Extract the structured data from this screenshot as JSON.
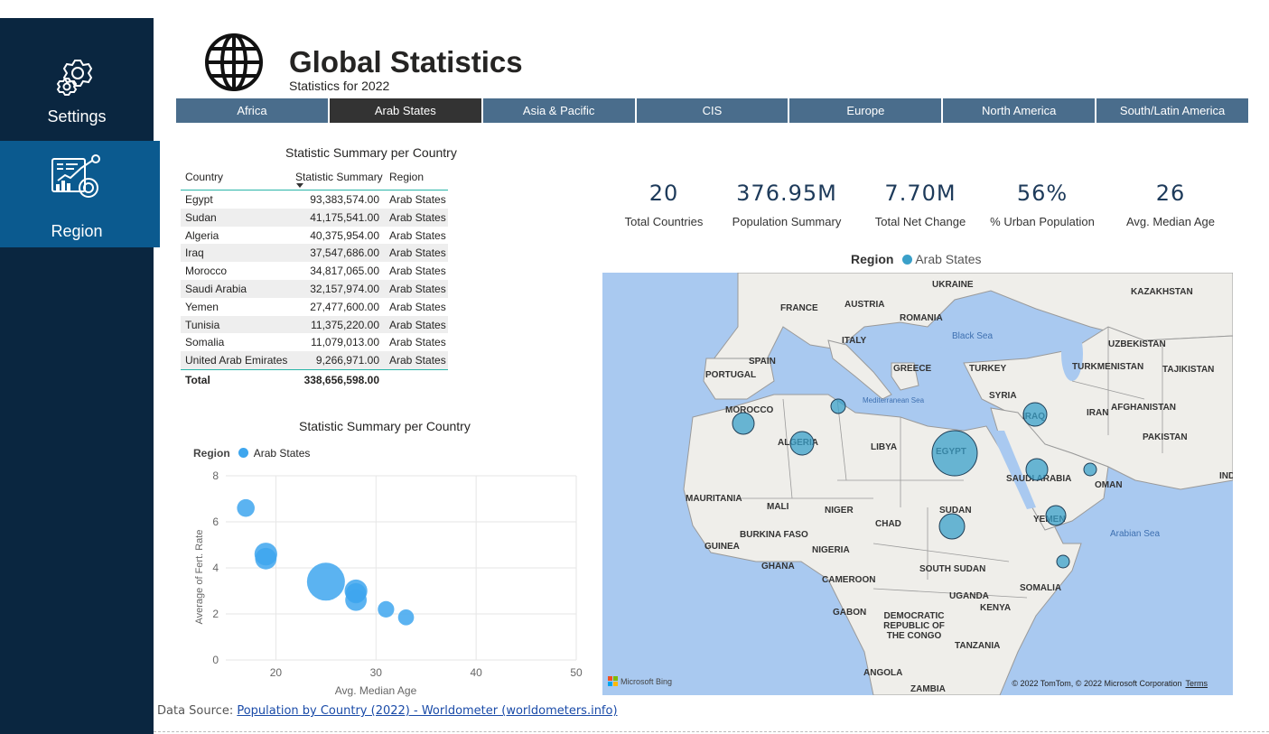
{
  "sidebar": {
    "items": [
      {
        "label": "Settings",
        "icon": "gear-icon"
      },
      {
        "label": "Region",
        "icon": "analytics-icon"
      }
    ]
  },
  "header": {
    "title": "Global Statistics",
    "subtitle": "Statistics for 2022",
    "icon": "globe-icon"
  },
  "tabs": [
    "Africa",
    "Arab States",
    "Asia & Pacific",
    "CIS",
    "Europe",
    "North America",
    "South/Latin America"
  ],
  "active_tab": "Arab States",
  "table": {
    "title": "Statistic Summary per Country",
    "columns": [
      "Country",
      "Statistic Summary",
      "Region"
    ],
    "rows": [
      [
        "Egypt",
        "93,383,574.00",
        "Arab States"
      ],
      [
        "Sudan",
        "41,175,541.00",
        "Arab States"
      ],
      [
        "Algeria",
        "40,375,954.00",
        "Arab States"
      ],
      [
        "Iraq",
        "37,547,686.00",
        "Arab States"
      ],
      [
        "Morocco",
        "34,817,065.00",
        "Arab States"
      ],
      [
        "Saudi Arabia",
        "32,157,974.00",
        "Arab States"
      ],
      [
        "Yemen",
        "27,477,600.00",
        "Arab States"
      ],
      [
        "Tunisia",
        "11,375,220.00",
        "Arab States"
      ],
      [
        "Somalia",
        "11,079,013.00",
        "Arab States"
      ],
      [
        "United Arab Emirates",
        "9,266,971.00",
        "Arab States"
      ]
    ],
    "total_label": "Total",
    "total_value": "338,656,598.00"
  },
  "kpis": [
    {
      "value": "20",
      "label": "Total Countries"
    },
    {
      "value": "376.95M",
      "label": "Population Summary"
    },
    {
      "value": "7.70M",
      "label": "Total Net Change"
    },
    {
      "value": "56%",
      "label": "% Urban Population"
    },
    {
      "value": "26",
      "label": "Avg. Median Age"
    }
  ],
  "chart_data": {
    "type": "scatter",
    "title": "Statistic Summary per Country",
    "legend_title": "Region",
    "series": [
      {
        "name": "Arab States",
        "color": "#3ea6ee",
        "points": [
          {
            "x": 17,
            "y": 6.6,
            "size": 0.2
          },
          {
            "x": 19,
            "y": 4.6,
            "size": 0.4
          },
          {
            "x": 19,
            "y": 4.4,
            "size": 0.35
          },
          {
            "x": 25,
            "y": 3.4,
            "size": 1.0
          },
          {
            "x": 28,
            "y": 3.0,
            "size": 0.4
          },
          {
            "x": 28,
            "y": 2.6,
            "size": 0.35
          },
          {
            "x": 28,
            "y": 2.9,
            "size": 0.3
          },
          {
            "x": 31,
            "y": 2.2,
            "size": 0.15
          },
          {
            "x": 33,
            "y": 1.85,
            "size": 0.13
          }
        ]
      }
    ],
    "xlabel": "Avg. Median Age",
    "ylabel": "Average of Fert. Rate",
    "xlim": [
      15,
      50
    ],
    "ylim": [
      0,
      8
    ],
    "xticks": [
      20,
      30,
      40,
      50
    ],
    "yticks": [
      0,
      2,
      4,
      6,
      8
    ],
    "grid": true,
    "legend_position": "top-left"
  },
  "map": {
    "legend_title": "Region",
    "legend_item": "Arab States",
    "legend_color": "#3aa0c9",
    "country_labels": [
      "UKRAINE",
      "KAZAKHSTAN",
      "FRANCE",
      "AUSTRIA",
      "ROMANIA",
      "ITALY",
      "UZBEKISTAN",
      "SPAIN",
      "PORTUGAL",
      "GREECE",
      "TURKEY",
      "TURKMENISTAN",
      "TAJIKISTAN",
      "SYRIA",
      "MOROCCO",
      "IRAQ",
      "IRAN",
      "AFGHANISTAN",
      "ALGERIA",
      "LIBYA",
      "EGYPT",
      "PAKISTAN",
      "SAUDI ARABIA",
      "OMAN",
      "IND",
      "MAURITANIA",
      "MALI",
      "NIGER",
      "CHAD",
      "SUDAN",
      "YEMEN",
      "BURKINA FASO",
      "GUINEA",
      "NIGERIA",
      "GHANA",
      "CAMEROON",
      "SOUTH SUDAN",
      "SOMALIA",
      "UGANDA",
      "KENYA",
      "GABON",
      "DEMOCRATIC REPUBLIC OF THE CONGO",
      "TANZANIA",
      "ANGOLA",
      "ZAMBIA"
    ],
    "sea_labels": [
      "Black Sea",
      "Mediterranean Sea",
      "Arabian Sea"
    ],
    "credit": "© 2022 TomTom, © 2022 Microsoft Corporation",
    "terms": "Terms",
    "bing": "Microsoft Bing"
  },
  "footer": {
    "prefix": "Data Source: ",
    "link": "Population by Country (2022) - Worldometer (worldometers.info)"
  }
}
